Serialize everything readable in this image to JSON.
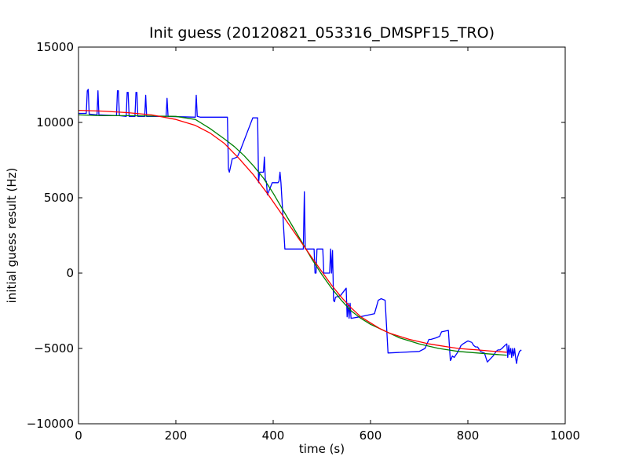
{
  "chart_data": {
    "type": "line",
    "title": "Init guess (20120821_053316_DMSPF15_TRO)",
    "xlabel": "time (s)",
    "ylabel": "initial guess result (Hz)",
    "xlim": [
      0,
      1000
    ],
    "ylim": [
      -10000,
      15000
    ],
    "xticks": [
      0,
      200,
      400,
      600,
      800,
      1000
    ],
    "yticks": [
      -10000,
      -5000,
      0,
      5000,
      10000,
      15000
    ],
    "xtick_labels": [
      "0",
      "200",
      "400",
      "600",
      "800",
      "1000"
    ],
    "ytick_labels": [
      "−10000",
      "−5000",
      "0",
      "5000",
      "10000",
      "15000"
    ],
    "grid": false,
    "series": [
      {
        "color": "#0000ff",
        "x": [
          0,
          16,
          18,
          20,
          22,
          38,
          40,
          42,
          78,
          80,
          82,
          84,
          98,
          100,
          102,
          104,
          116,
          118,
          120,
          122,
          136,
          138,
          140,
          180,
          182,
          184,
          240,
          242,
          244,
          250,
          290,
          306,
          308,
          310,
          316,
          318,
          326,
          332,
          358,
          368,
          370,
          372,
          378,
          380,
          382,
          384,
          386,
          388,
          392,
          398,
          410,
          412,
          414,
          416,
          424,
          436,
          440,
          462,
          464,
          466,
          468,
          484,
          486,
          488,
          490,
          502,
          504,
          516,
          518,
          520,
          522,
          524,
          526,
          528,
          538,
          550,
          552,
          554,
          556,
          558,
          560,
          578,
          608,
          616,
          622,
          630,
          636,
          700,
          712,
          716,
          720,
          724,
          734,
          742,
          746,
          760,
          764,
          766,
          768,
          772,
          778,
          780,
          786,
          790,
          800,
          808,
          812,
          816,
          820,
          826,
          834,
          840,
          846,
          852,
          858,
          862,
          866,
          870,
          876,
          880,
          882,
          884,
          886,
          888,
          890,
          892,
          894,
          896,
          898,
          900,
          902,
          906,
          910
        ],
        "y": [
          10600,
          10600,
          12100,
          12200,
          10550,
          10500,
          12100,
          10500,
          10450,
          12100,
          12100,
          10450,
          10400,
          12000,
          12000,
          10400,
          10400,
          12000,
          12000,
          10400,
          10400,
          11800,
          10400,
          10400,
          11600,
          10400,
          10350,
          11800,
          10400,
          10350,
          10350,
          10350,
          6900,
          6700,
          7600,
          7600,
          7700,
          8100,
          10300,
          10300,
          6000,
          6700,
          6700,
          6700,
          7700,
          6100,
          6100,
          5200,
          5500,
          6000,
          6000,
          6100,
          6700,
          6000,
          1600,
          1600,
          1600,
          1600,
          5400,
          1600,
          1600,
          1600,
          0,
          0,
          1600,
          1600,
          0,
          0,
          1600,
          0,
          1500,
          -1800,
          -1900,
          -1600,
          -1500,
          -1000,
          -2900,
          -2000,
          -3000,
          -2000,
          -3000,
          -2900,
          -2700,
          -1800,
          -1700,
          -1800,
          -5300,
          -5200,
          -5000,
          -4700,
          -4400,
          -4400,
          -4300,
          -4200,
          -3900,
          -3800,
          -5800,
          -5700,
          -5500,
          -5600,
          -5300,
          -5200,
          -4800,
          -4700,
          -4500,
          -4600,
          -4800,
          -4900,
          -4900,
          -5200,
          -5300,
          -5900,
          -5700,
          -5500,
          -5200,
          -5100,
          -5100,
          -5000,
          -4800,
          -4700,
          -5600,
          -4800,
          -5400,
          -5000,
          -5600,
          -5000,
          -5500,
          -5000,
          -5600,
          -6000,
          -5600,
          -5200,
          -5100
        ]
      },
      {
        "color": "#008000",
        "x": [
          0,
          50,
          100,
          150,
          200,
          240,
          270,
          300,
          320,
          340,
          360,
          380,
          400,
          420,
          440,
          460,
          480,
          500,
          520,
          540,
          560,
          580,
          600,
          620,
          640,
          660,
          680,
          700,
          720,
          740,
          760,
          780,
          800,
          820,
          850,
          880
        ],
        "y": [
          10500,
          10450,
          10450,
          10420,
          10400,
          10200,
          9600,
          8900,
          8400,
          7800,
          7100,
          6300,
          5300,
          4200,
          3100,
          2000,
          900,
          -100,
          -1000,
          -1800,
          -2500,
          -3000,
          -3400,
          -3700,
          -4000,
          -4300,
          -4500,
          -4700,
          -4850,
          -5000,
          -5100,
          -5200,
          -5250,
          -5300,
          -5380,
          -5450
        ]
      },
      {
        "color": "#ff0000",
        "x": [
          0,
          50,
          100,
          150,
          200,
          240,
          270,
          300,
          330,
          360,
          390,
          420,
          450,
          480,
          500,
          520,
          540,
          560,
          580,
          600,
          620,
          640,
          660,
          680,
          700,
          720,
          740,
          760,
          780,
          800,
          820,
          850,
          880
        ],
        "y": [
          10800,
          10750,
          10650,
          10500,
          10200,
          9800,
          9300,
          8600,
          7600,
          6500,
          5200,
          3800,
          2400,
          1000,
          100,
          -800,
          -1600,
          -2300,
          -2900,
          -3300,
          -3700,
          -4000,
          -4200,
          -4400,
          -4550,
          -4700,
          -4800,
          -4900,
          -5000,
          -5050,
          -5100,
          -5180,
          -5250
        ]
      }
    ]
  }
}
